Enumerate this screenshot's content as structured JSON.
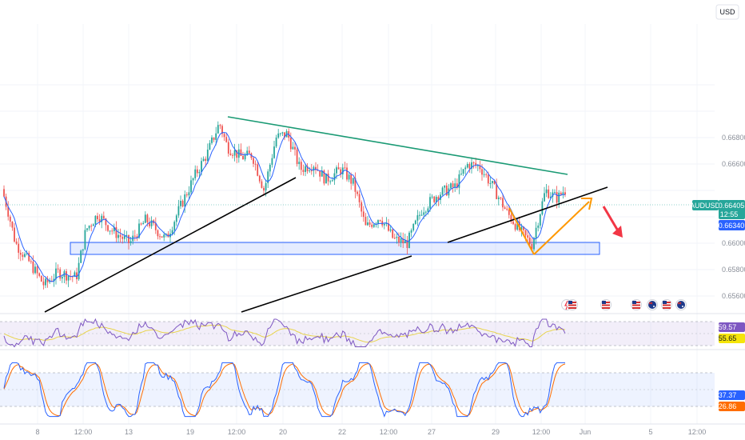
{
  "currency_label": "USD",
  "symbol": "AUDUSD",
  "chart_data": {
    "type": "candlestick",
    "price_axis": {
      "ticks": [
        0.656,
        0.658,
        0.66,
        0.662,
        0.664,
        0.666,
        0.668,
        0.67,
        0.672
      ],
      "tick_labels": [
        "0.65600",
        "0.65800",
        "0.66000",
        "",
        "",
        "0.66600",
        "0.66800",
        "",
        ""
      ]
    },
    "time_axis": {
      "labels": [
        "8",
        "12:00",
        "13",
        "19",
        "12:00",
        "20",
        "22",
        "12:00",
        "27",
        "29",
        "12:00",
        "Jun",
        "5",
        "12:00"
      ]
    },
    "price_tags": {
      "last_price": "0.66405",
      "countdown": "12:55",
      "previous_close": "0.66340"
    },
    "up_color": "#26a69a",
    "down_color": "#ef5350",
    "trend_colors": {
      "resistance": "#1a9a74",
      "support": "#000000",
      "range_box": "#2962ff",
      "projection_up": "#ff9800",
      "projection_down": "#f23645",
      "moving_average": "#2962ff"
    }
  },
  "rsi_panel": {
    "value": "59.57",
    "signal": "55.65",
    "line_color": "#7e57c2",
    "signal_color": "#e8d44d"
  },
  "stoch_panel": {
    "k_value": "37.37",
    "d_value": "26.86",
    "k_color": "#2962ff",
    "d_color": "#ff6d00"
  },
  "event_icons": [
    "flash-icon",
    "us-flag-icon",
    "us-flag-icon",
    "us-flag-icon",
    "au-flag-icon",
    "us-flag-icon",
    "au-flag-icon"
  ]
}
